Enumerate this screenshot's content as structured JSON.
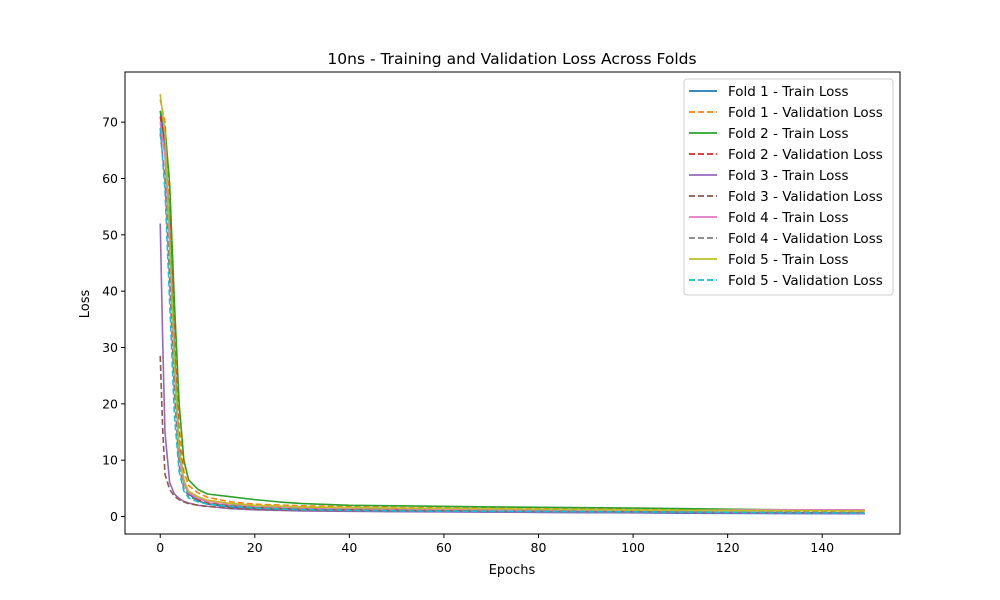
{
  "chart_data": {
    "type": "line",
    "title": "10ns - Training and Validation Loss Across Folds",
    "xlabel": "Epochs",
    "ylabel": "Loss",
    "xlim": [
      -7.45,
      156.45
    ],
    "ylim": [
      -3.1,
      78.9
    ],
    "xticks": [
      0,
      20,
      40,
      60,
      80,
      100,
      120,
      140
    ],
    "yticks": [
      0,
      10,
      20,
      30,
      40,
      50,
      60,
      70
    ],
    "grid": false,
    "legend_position": "top-right",
    "series": [
      {
        "name": "Fold 1 - Train Loss",
        "color": "#1f77b4",
        "style": "solid",
        "x": [
          0,
          1,
          2,
          3,
          4,
          5,
          6,
          8,
          10,
          15,
          20,
          30,
          50,
          80,
          110,
          149
        ],
        "y": [
          72,
          66,
          52,
          30,
          12,
          6.0,
          4.0,
          2.8,
          2.2,
          1.7,
          1.4,
          1.1,
          0.9,
          0.75,
          0.6,
          0.5
        ]
      },
      {
        "name": "Fold 1 - Validation Loss",
        "color": "#ff7f0e",
        "style": "dashed",
        "x": [
          0,
          1,
          2,
          3,
          4,
          5,
          6,
          8,
          10,
          15,
          20,
          30,
          50,
          80,
          110,
          149
        ],
        "y": [
          74,
          70,
          56,
          36,
          16,
          8.0,
          5.5,
          4.2,
          3.4,
          2.6,
          2.2,
          1.9,
          1.6,
          1.4,
          1.2,
          1.0
        ]
      },
      {
        "name": "Fold 2 - Train Loss",
        "color": "#2ca02c",
        "style": "solid",
        "x": [
          0,
          1,
          2,
          3,
          4,
          5,
          6,
          8,
          10,
          15,
          20,
          25,
          30,
          40,
          50,
          70,
          100,
          120,
          149
        ],
        "y": [
          72,
          69,
          59,
          38,
          20,
          10,
          6.5,
          4.8,
          4.0,
          3.5,
          3.0,
          2.6,
          2.3,
          2.0,
          1.9,
          1.7,
          1.5,
          1.3,
          1.1
        ]
      },
      {
        "name": "Fold 2 - Validation Loss",
        "color": "#d62728",
        "style": "dashed",
        "x": [
          0,
          1,
          2,
          3,
          4,
          5,
          6,
          8,
          10,
          15,
          20,
          30,
          50,
          80,
          110,
          149
        ],
        "y": [
          71,
          66,
          52,
          30,
          13,
          6.5,
          4.2,
          3.0,
          2.4,
          1.9,
          1.6,
          1.3,
          1.1,
          0.9,
          0.8,
          0.6
        ]
      },
      {
        "name": "Fold 3 - Train Loss",
        "color": "#9467bd",
        "style": "solid",
        "x": [
          0,
          0.5,
          1,
          2,
          3,
          4,
          5,
          6,
          8,
          10,
          15,
          20,
          30,
          50,
          80,
          110,
          149
        ],
        "y": [
          52,
          32,
          15,
          6.0,
          4.0,
          3.2,
          2.7,
          2.4,
          2.0,
          1.8,
          1.4,
          1.2,
          1.0,
          0.85,
          0.75,
          0.65,
          0.5
        ]
      },
      {
        "name": "Fold 3 - Validation Loss",
        "color": "#8c564b",
        "style": "dashed",
        "x": [
          0,
          0.5,
          1,
          2,
          3,
          4,
          5,
          6,
          8,
          10,
          15,
          20,
          30,
          50,
          80,
          110,
          149
        ],
        "y": [
          28.5,
          16,
          7.5,
          4.8,
          3.6,
          3.0,
          2.6,
          2.3,
          2.0,
          1.8,
          1.5,
          1.3,
          1.1,
          1.0,
          0.9,
          0.8,
          0.7
        ]
      },
      {
        "name": "Fold 4 - Train Loss",
        "color": "#e377c2",
        "style": "solid",
        "x": [
          0,
          1,
          2,
          3,
          4,
          5,
          6,
          8,
          10,
          15,
          20,
          30,
          50,
          80,
          110,
          130,
          149
        ],
        "y": [
          70,
          64,
          48,
          26,
          11,
          6.0,
          4.2,
          3.2,
          2.7,
          2.2,
          1.9,
          1.6,
          1.4,
          1.2,
          1.1,
          1.2,
          1.2
        ]
      },
      {
        "name": "Fold 4 - Validation Loss",
        "color": "#7f7f7f",
        "style": "dashed",
        "x": [
          0,
          1,
          2,
          3,
          4,
          5,
          6,
          8,
          10,
          15,
          20,
          30,
          50,
          80,
          110,
          149
        ],
        "y": [
          68,
          60,
          42,
          22,
          9.0,
          5.0,
          3.6,
          2.8,
          2.3,
          1.9,
          1.6,
          1.3,
          1.1,
          0.9,
          0.8,
          0.7
        ]
      },
      {
        "name": "Fold 5 - Train Loss",
        "color": "#bcbd22",
        "style": "solid",
        "x": [
          0,
          1,
          2,
          3,
          4,
          5,
          6,
          8,
          10,
          15,
          20,
          30,
          50,
          80,
          110,
          149
        ],
        "y": [
          75,
          68,
          50,
          28,
          12,
          6.5,
          4.5,
          3.5,
          2.9,
          2.3,
          2.0,
          1.7,
          1.5,
          1.3,
          1.1,
          1.0
        ]
      },
      {
        "name": "Fold 5 - Validation Loss",
        "color": "#17becf",
        "style": "dashed",
        "x": [
          0,
          1,
          2,
          3,
          4,
          5,
          6,
          8,
          10,
          15,
          20,
          30,
          50,
          80,
          110,
          149
        ],
        "y": [
          69,
          58,
          38,
          18,
          8.0,
          4.5,
          3.3,
          2.6,
          2.2,
          1.8,
          1.5,
          1.2,
          1.0,
          0.9,
          0.8,
          0.6
        ]
      }
    ]
  }
}
